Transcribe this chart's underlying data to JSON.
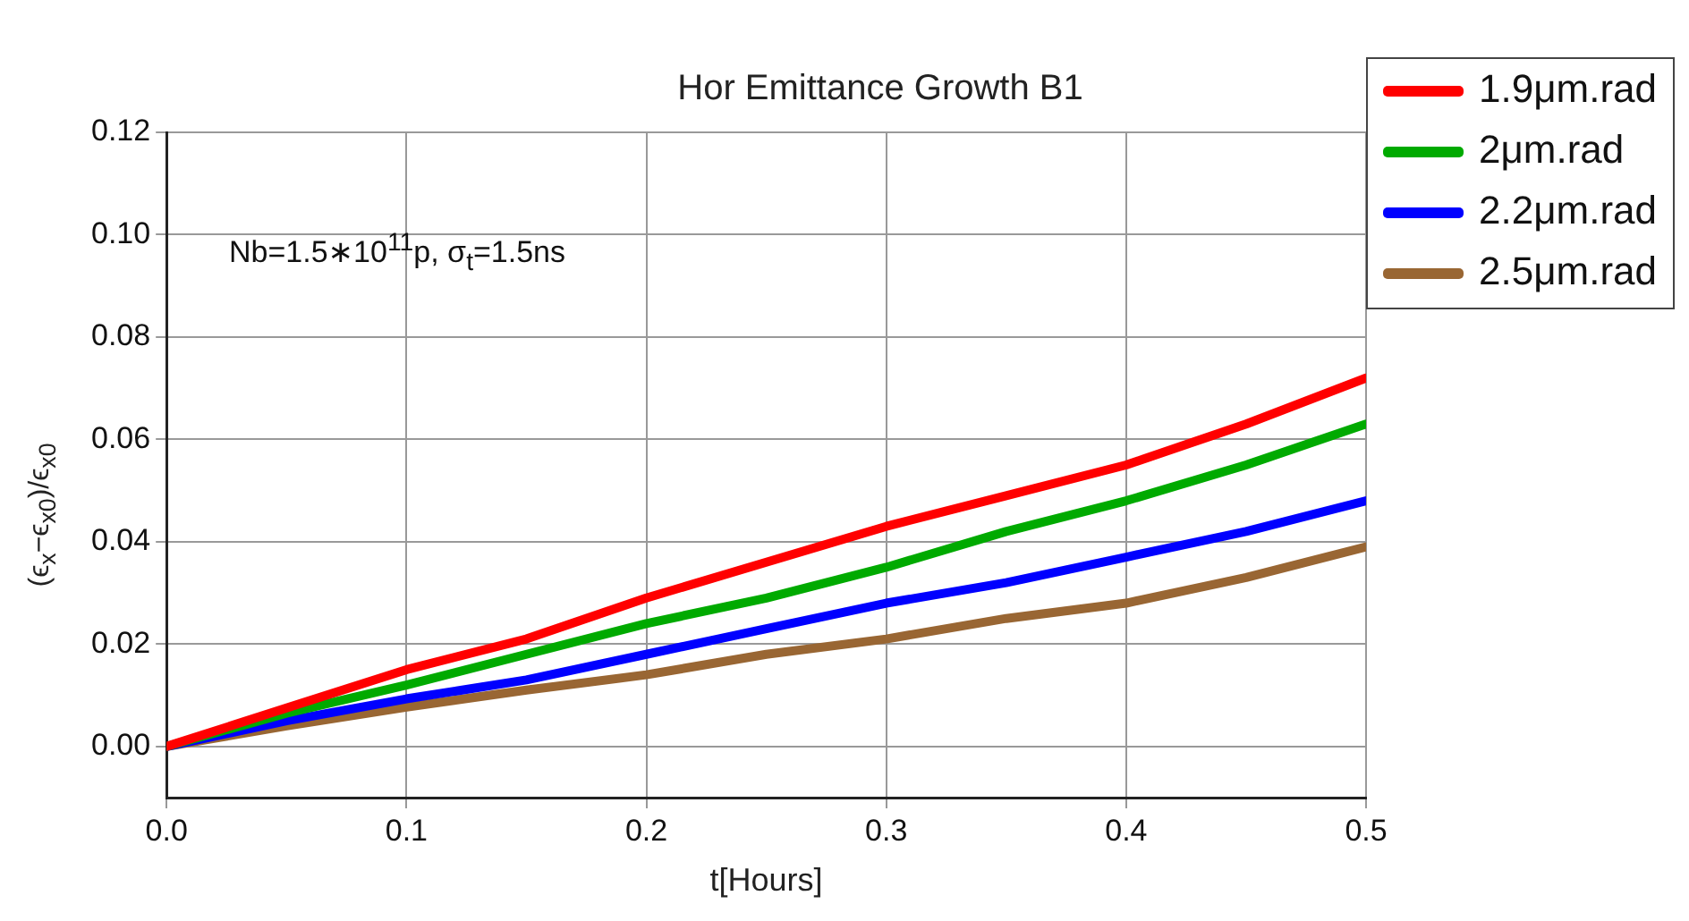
{
  "chart_data": {
    "type": "line",
    "title": "Hor Emittance Growth B1",
    "xlabel": "t[Hours]",
    "ylabel": "(ϵ$_{x}$−ϵ$_{x0}$)/ϵ$_{x0}$",
    "annotations": [
      "Nb=1.5∗10$^{11}$p, σ$_{t}$=1.5ns"
    ],
    "x": [
      0,
      0.05,
      0.1,
      0.15,
      0.2,
      0.25,
      0.3,
      0.35,
      0.4,
      0.45,
      0.5
    ],
    "series": [
      {
        "name": "1.9μm.rad",
        "color": "#ff0000",
        "values": [
          0,
          0.0075,
          0.015,
          0.021,
          0.029,
          0.036,
          0.043,
          0.049,
          0.055,
          0.063,
          0.072
        ]
      },
      {
        "name": "2μm.rad",
        "color": "#00aa00",
        "values": [
          0,
          0.0065,
          0.012,
          0.018,
          0.024,
          0.029,
          0.035,
          0.042,
          0.048,
          0.055,
          0.063
        ]
      },
      {
        "name": "2.2μm.rad",
        "color": "#0000ff",
        "values": [
          0,
          0.005,
          0.0093,
          0.013,
          0.018,
          0.023,
          0.028,
          0.032,
          0.037,
          0.042,
          0.048
        ]
      },
      {
        "name": "2.5μm.rad",
        "color": "#996633",
        "values": [
          0,
          0.004,
          0.0077,
          0.011,
          0.014,
          0.018,
          0.021,
          0.025,
          0.028,
          0.033,
          0.039
        ]
      }
    ],
    "xlim": [
      0,
      0.5
    ],
    "xticks": [
      {
        "value": 0,
        "label": "0.0"
      },
      0.1,
      0.2,
      0.3,
      0.4,
      0.5
    ],
    "ylim": [
      -0.01,
      0.12
    ],
    "yticks": [
      {
        "value": 0,
        "label": "0.00"
      },
      0.02,
      0.04,
      0.06,
      0.08,
      {
        "value": 0.1,
        "label": "0.10"
      },
      0.12
    ],
    "grid": true,
    "legend": "top right",
    "marker": "none",
    "line_style": "solid"
  }
}
